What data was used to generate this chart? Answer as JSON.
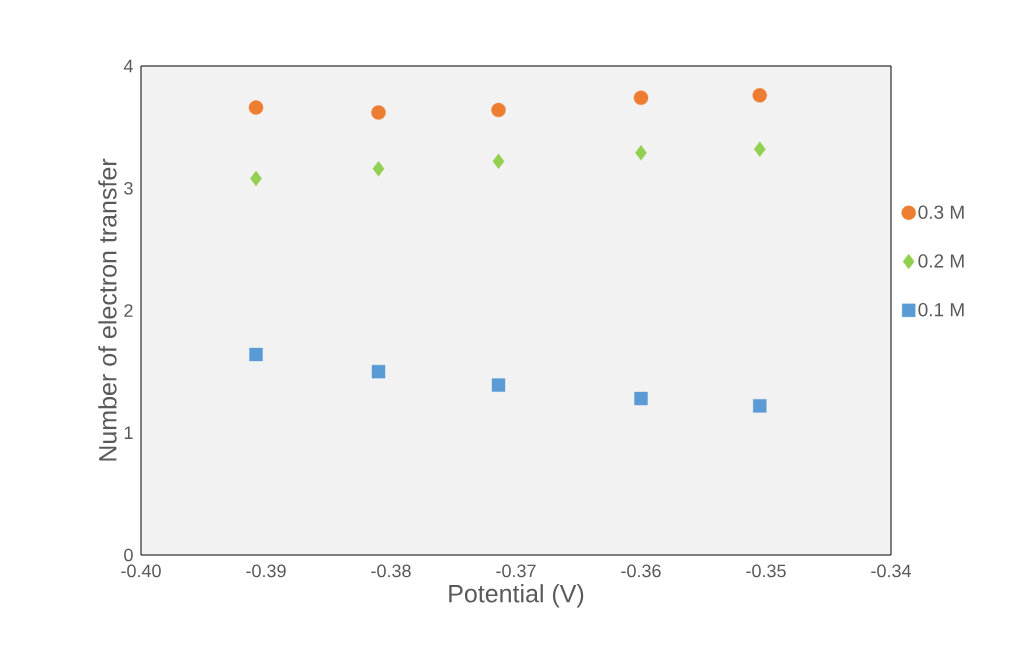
{
  "chart_data": {
    "type": "scatter",
    "xlabel": "Potential (V)",
    "ylabel": "Number of electron transfer",
    "xlim": [
      -0.4,
      -0.34
    ],
    "ylim": [
      0,
      4
    ],
    "xticks": [
      {
        "value": -0.4,
        "label": "-0.40"
      },
      {
        "value": -0.39,
        "label": "-0.39"
      },
      {
        "value": -0.38,
        "label": "-0.38"
      },
      {
        "value": -0.37,
        "label": "-0.37"
      },
      {
        "value": -0.36,
        "label": "-0.36"
      },
      {
        "value": -0.35,
        "label": "-0.35"
      },
      {
        "value": -0.34,
        "label": "-0.34"
      }
    ],
    "yticks": [
      0,
      1,
      2,
      3,
      4
    ],
    "x": [
      -0.3908,
      -0.381,
      -0.3714,
      -0.36,
      -0.3505
    ],
    "legend": "right",
    "grid": false,
    "series": [
      {
        "name": "0.3 M",
        "color": "#ed7d31",
        "marker": "circle",
        "values": [
          3.66,
          3.62,
          3.64,
          3.74,
          3.76
        ]
      },
      {
        "name": "0.2 M",
        "color": "#92d050",
        "marker": "diamond",
        "values": [
          3.08,
          3.16,
          3.22,
          3.29,
          3.32
        ]
      },
      {
        "name": "0.1 M",
        "color": "#5b9bd5",
        "marker": "square",
        "values": [
          1.64,
          1.5,
          1.39,
          1.28,
          1.22
        ]
      }
    ]
  }
}
